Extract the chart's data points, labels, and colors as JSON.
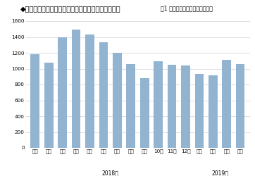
{
  "title": "◆ドラッグストアのインバウンド消費購買件数の推移",
  "subtitle": "（1 店舗あたりのレシート枚数）",
  "categories": [
    "１月",
    "２月",
    "３月",
    "４月",
    "５月",
    "６月",
    "７月",
    "８月",
    "９月",
    "10月",
    "11月",
    "12月",
    "１月",
    "２月",
    "３月",
    "４月"
  ],
  "year_labels": [
    "2018年",
    "2019年"
  ],
  "values": [
    1180,
    1080,
    1400,
    1490,
    1430,
    1330,
    1200,
    1060,
    880,
    1090,
    1050,
    1040,
    930,
    920,
    1110,
    1060
  ],
  "bar_color": "#92b4d0",
  "ylim": [
    0,
    1600
  ],
  "yticks": [
    0,
    200,
    400,
    600,
    800,
    1000,
    1200,
    1400,
    1600
  ],
  "bg_color": "#ffffff",
  "grid_color": "#d0d0d0",
  "title_color": "#000000",
  "title_fontsize": 7.0,
  "subtitle_fontsize": 5.8,
  "axis_fontsize": 5.2,
  "year_fontsize": 5.5
}
